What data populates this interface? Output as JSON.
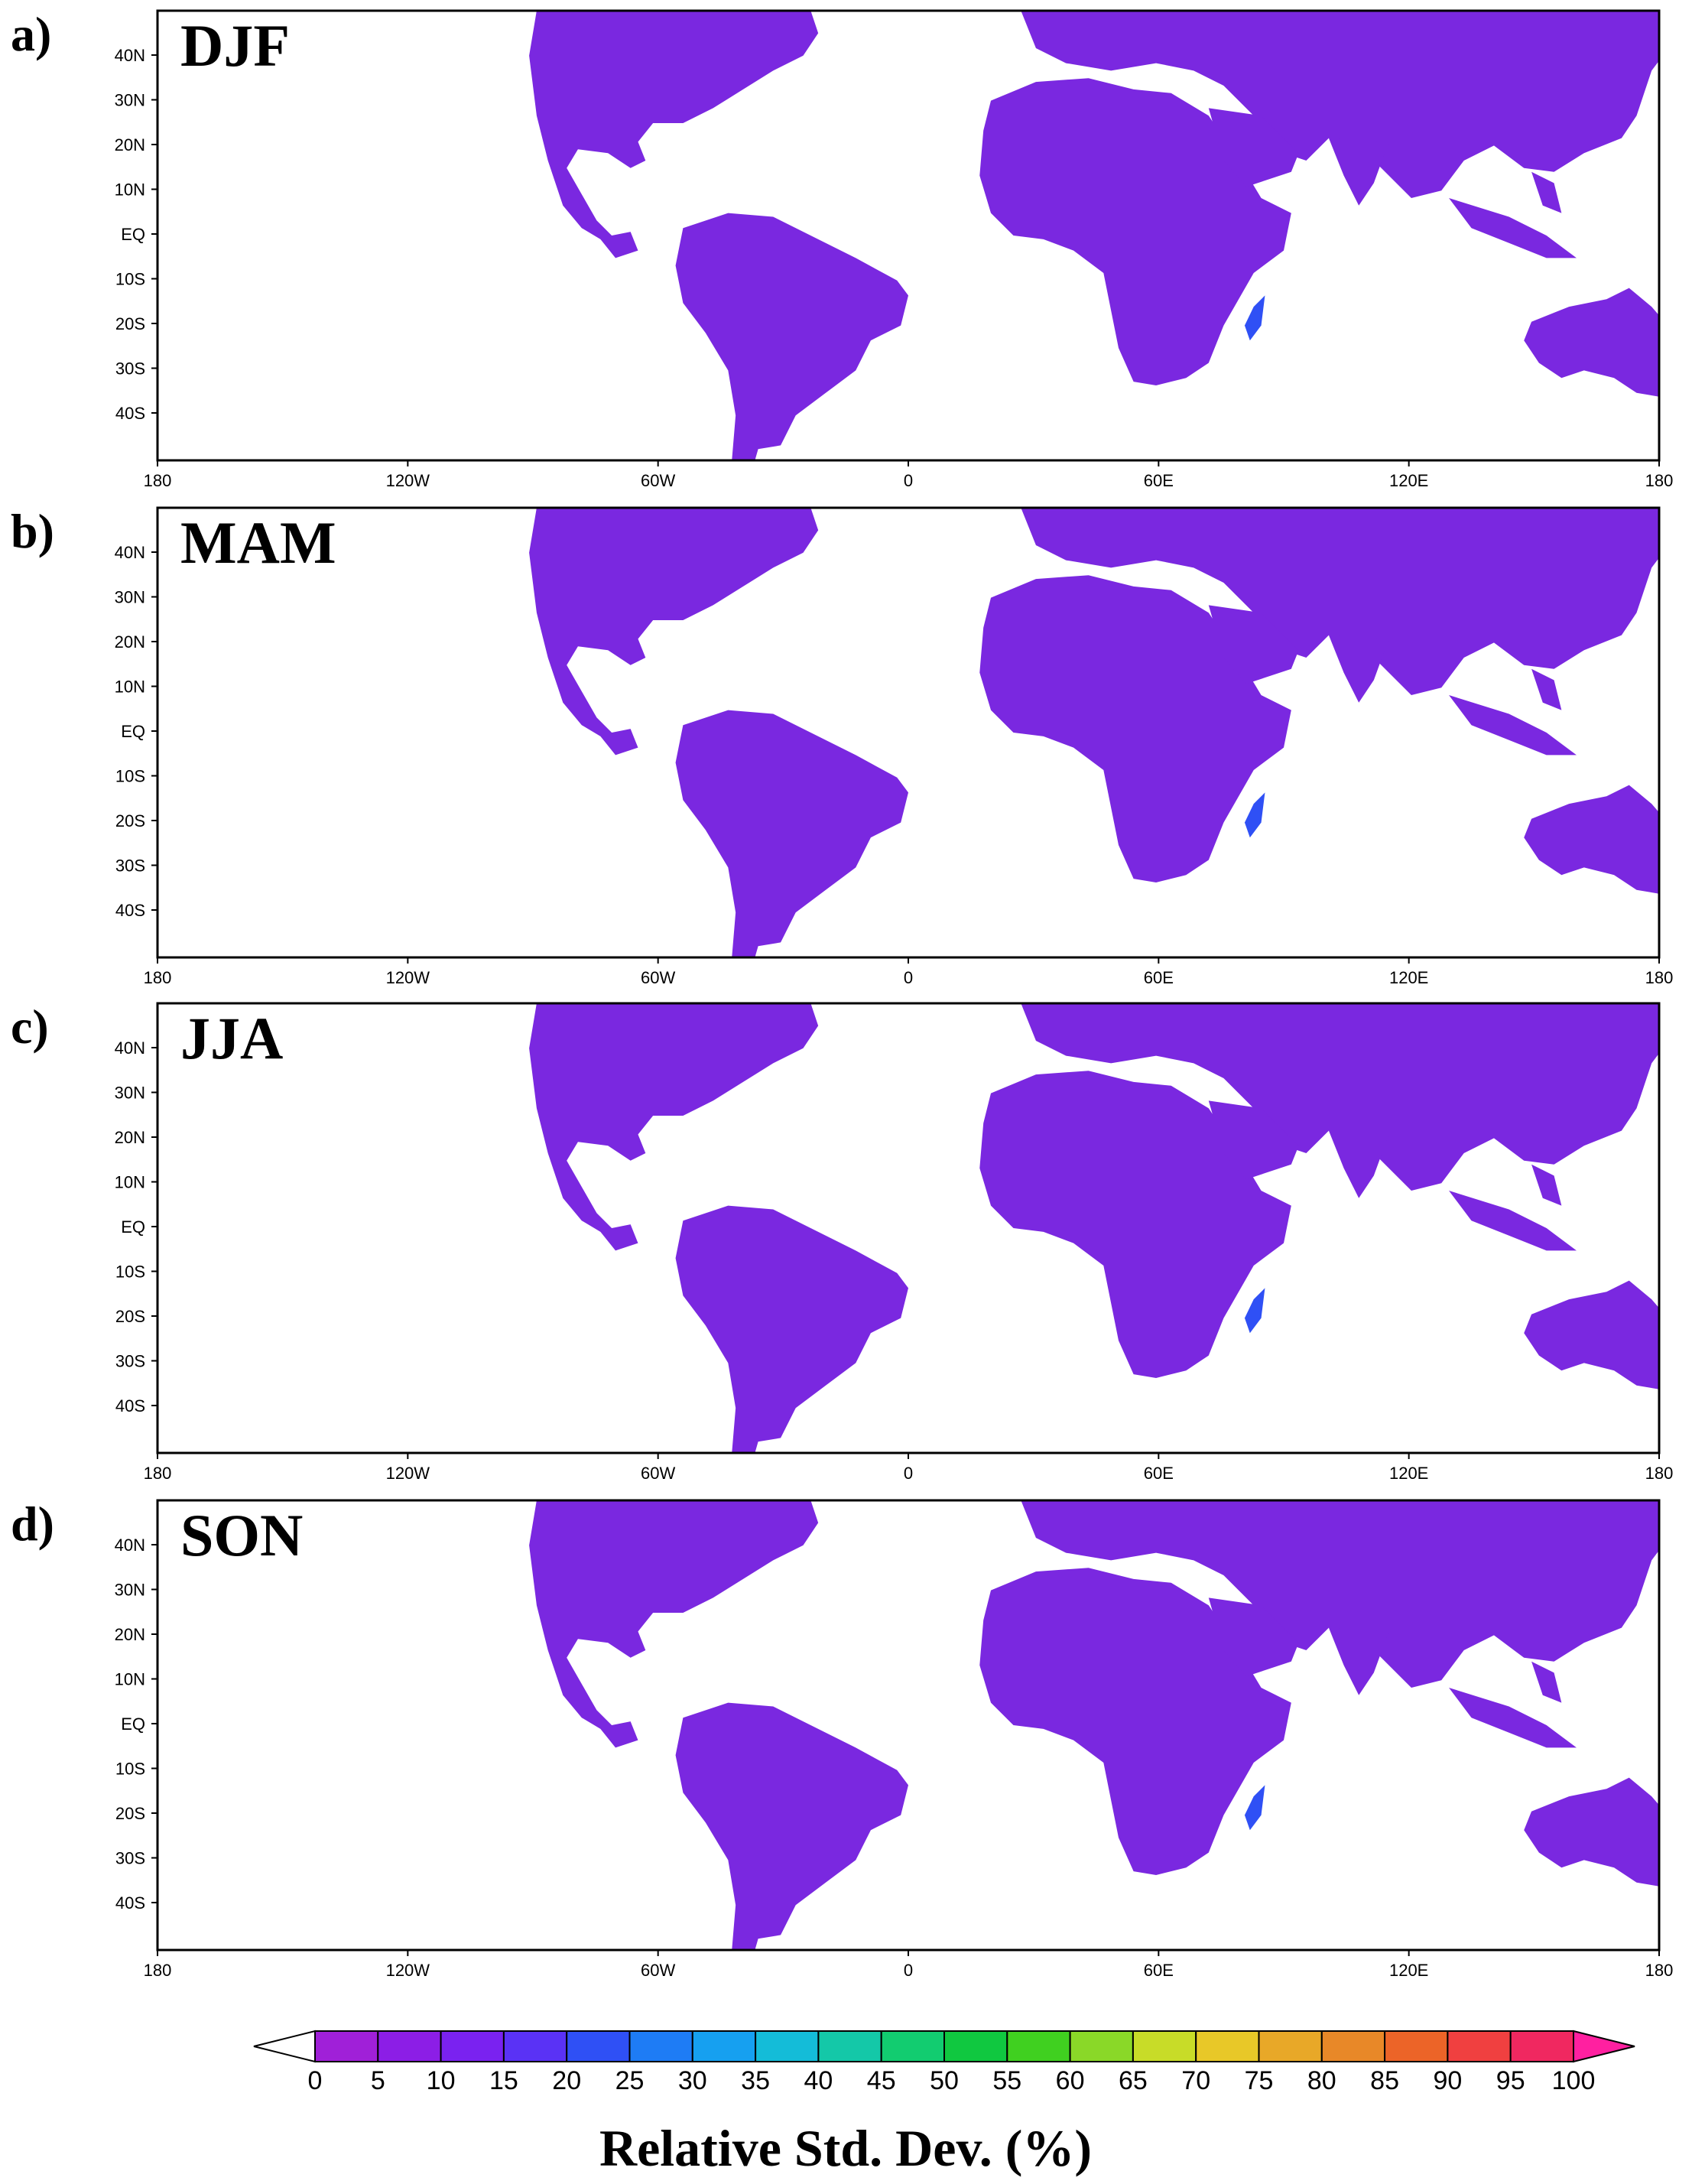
{
  "figure": {
    "panels": [
      {
        "letter": "a)",
        "season": "DJF"
      },
      {
        "letter": "b)",
        "season": "MAM"
      },
      {
        "letter": "c)",
        "season": "JJA"
      },
      {
        "letter": "d)",
        "season": "SON"
      }
    ],
    "lat_labels": [
      "40N",
      "30N",
      "20N",
      "10N",
      "EQ",
      "10S",
      "20S",
      "30S",
      "40S"
    ],
    "lon_labels": [
      "180",
      "120W",
      "60W",
      "0",
      "60E",
      "120E",
      "180"
    ],
    "colorbar": {
      "ticks": [
        "0",
        "5",
        "10",
        "15",
        "20",
        "25",
        "30",
        "35",
        "40",
        "45",
        "50",
        "55",
        "60",
        "65",
        "70",
        "75",
        "80",
        "85",
        "90",
        "95",
        "100"
      ],
      "colors": [
        "#a020d8",
        "#8c1ee6",
        "#7a22f0",
        "#5a32f5",
        "#2f50f5",
        "#1e7cf5",
        "#16a0f0",
        "#14bcd8",
        "#14c8a8",
        "#12cc70",
        "#10c840",
        "#40d020",
        "#8ad828",
        "#c8dc28",
        "#e8c828",
        "#e8a828",
        "#e88828",
        "#ec6428",
        "#f04040",
        "#f02860"
      ],
      "under_color": "#ffffff",
      "over_color": "#ff20a0",
      "title": "Relative Std. Dev. (%)"
    }
  }
}
